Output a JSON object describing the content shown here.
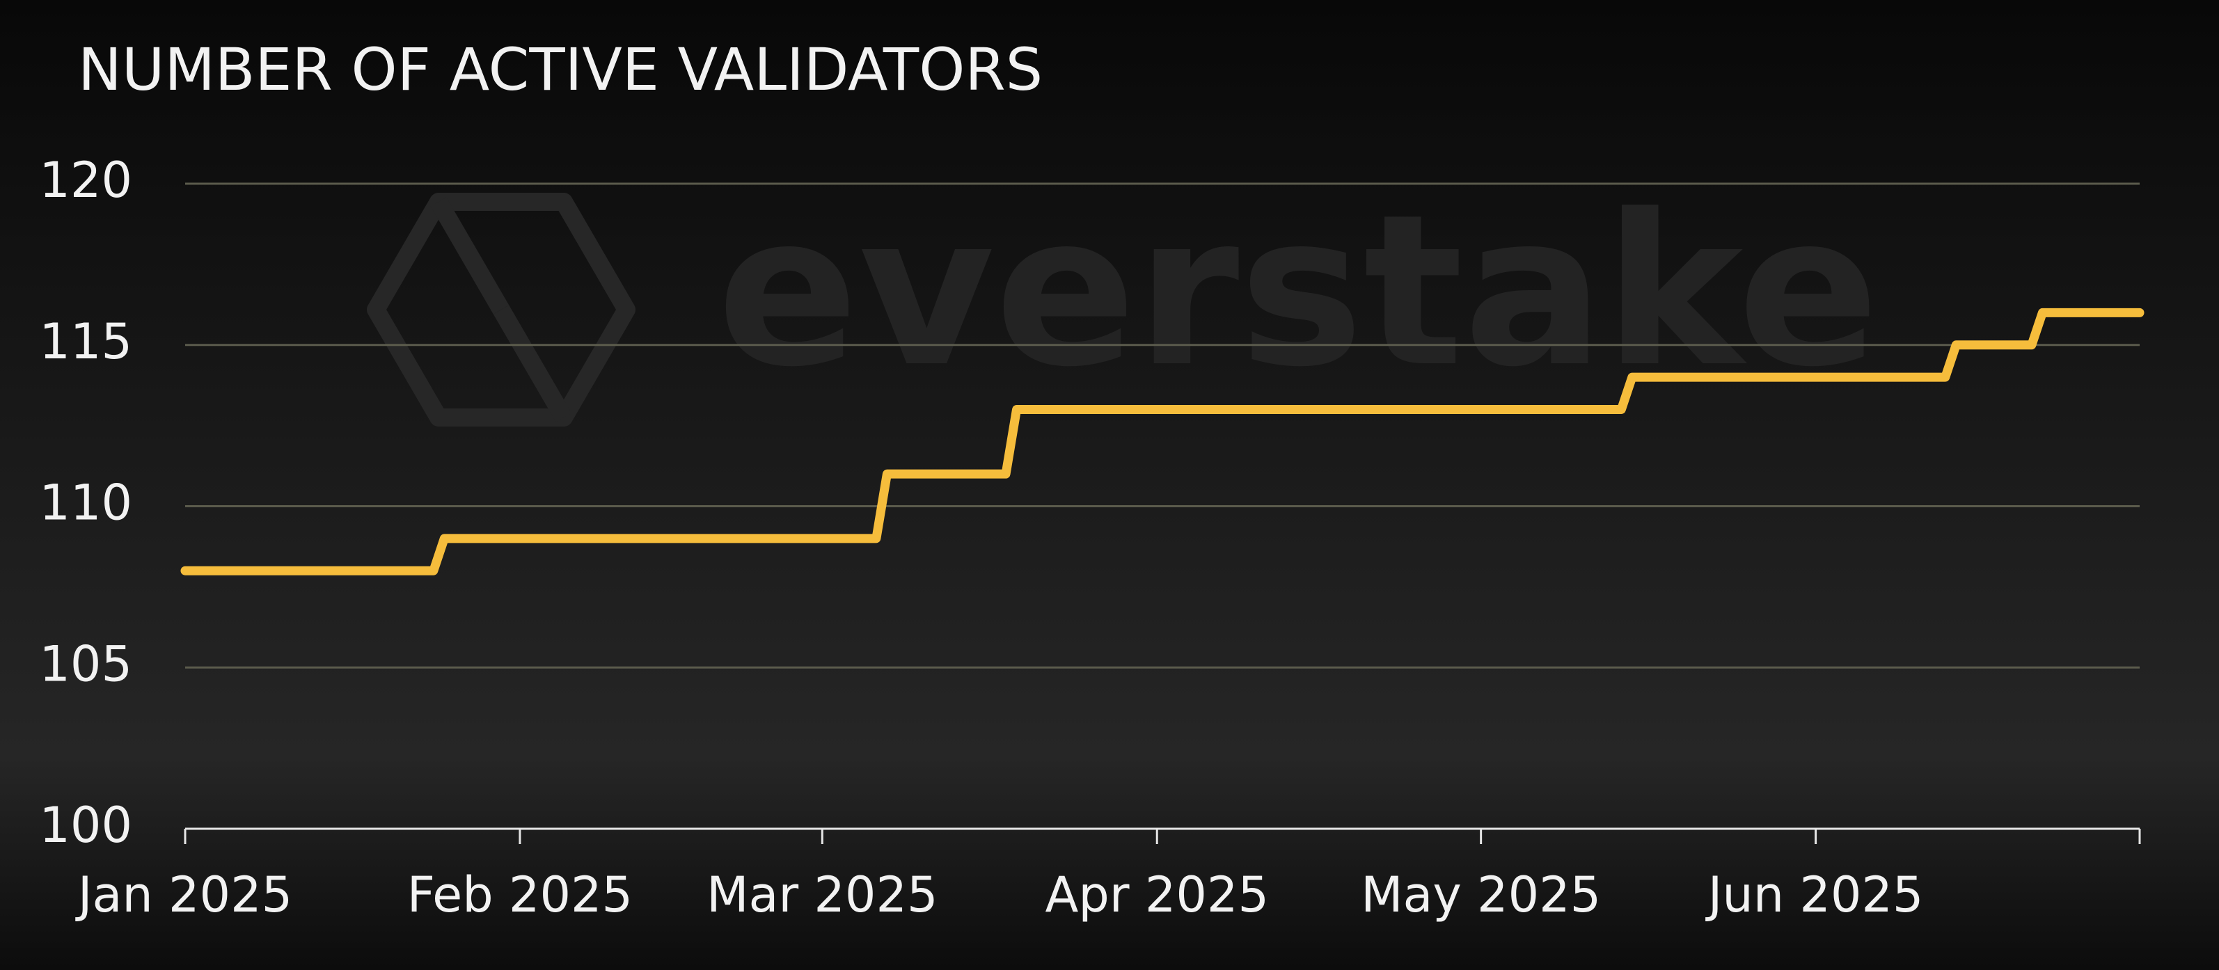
{
  "chart_data": {
    "type": "line",
    "title": "NUMBER OF ACTIVE VALIDATORS",
    "watermark": "everstake",
    "categories": [
      "Jan 2025",
      null,
      null,
      null,
      null,
      null,
      null,
      null,
      null,
      null,
      null,
      null,
      null,
      null,
      null,
      null,
      null,
      null,
      null,
      null,
      null,
      null,
      null,
      null,
      null,
      null,
      null,
      null,
      null,
      null,
      null,
      "Feb 2025",
      null,
      null,
      null,
      null,
      null,
      null,
      null,
      null,
      null,
      null,
      null,
      null,
      null,
      null,
      null,
      null,
      null,
      null,
      null,
      null,
      null,
      null,
      null,
      null,
      null,
      null,
      null,
      "Mar 2025",
      null,
      null,
      null,
      null,
      null,
      null,
      null,
      null,
      null,
      null,
      null,
      null,
      null,
      null,
      null,
      null,
      null,
      null,
      null,
      null,
      null,
      null,
      null,
      null,
      null,
      null,
      null,
      null,
      null,
      null,
      "Apr 2025",
      null,
      null,
      null,
      null,
      null,
      null,
      null,
      null,
      null,
      null,
      null,
      null,
      null,
      null,
      null,
      null,
      null,
      null,
      null,
      null,
      null,
      null,
      null,
      null,
      null,
      null,
      null,
      null,
      null,
      "May 2025",
      null,
      null,
      null,
      null,
      null,
      null,
      null,
      null,
      null,
      null,
      null,
      null,
      null,
      null,
      null,
      null,
      null,
      null,
      null,
      null,
      null,
      null,
      null,
      null,
      null,
      null,
      null,
      null,
      null,
      null,
      "Jun 2025",
      null,
      null,
      null,
      null,
      null,
      null,
      null,
      null,
      null,
      null,
      null,
      null,
      null,
      null,
      null,
      null,
      null,
      null,
      null,
      null,
      null,
      null,
      null,
      null,
      null,
      null,
      null,
      null,
      null,
      null
    ],
    "values": [
      108,
      108,
      108,
      108,
      108,
      108,
      108,
      108,
      108,
      108,
      108,
      108,
      108,
      108,
      108,
      108,
      108,
      108,
      108,
      108,
      108,
      108,
      108,
      108,
      109,
      109,
      109,
      109,
      109,
      109,
      109,
      109,
      109,
      109,
      109,
      109,
      109,
      109,
      109,
      109,
      109,
      109,
      109,
      109,
      109,
      109,
      109,
      109,
      109,
      109,
      109,
      109,
      109,
      109,
      109,
      109,
      109,
      109,
      109,
      109,
      109,
      109,
      109,
      109,
      109,
      111,
      111,
      111,
      111,
      111,
      111,
      111,
      111,
      111,
      111,
      111,
      111,
      113,
      113,
      113,
      113,
      113,
      113,
      113,
      113,
      113,
      113,
      113,
      113,
      113,
      113,
      113,
      113,
      113,
      113,
      113,
      113,
      113,
      113,
      113,
      113,
      113,
      113,
      113,
      113,
      113,
      113,
      113,
      113,
      113,
      113,
      113,
      113,
      113,
      113,
      113,
      113,
      113,
      113,
      113,
      113,
      113,
      113,
      113,
      113,
      113,
      113,
      113,
      113,
      113,
      113,
      113,
      113,
      113,
      114,
      114,
      114,
      114,
      114,
      114,
      114,
      114,
      114,
      114,
      114,
      114,
      114,
      114,
      114,
      114,
      114,
      114,
      114,
      114,
      114,
      114,
      114,
      114,
      114,
      114,
      114,
      114,
      114,
      114,
      115,
      115,
      115,
      115,
      115,
      115,
      115,
      115,
      116,
      116,
      116,
      116,
      116,
      116,
      116,
      116,
      116,
      116
    ],
    "color": "#f6bd3c",
    "ylim": [
      100,
      120
    ],
    "yticks": [
      100,
      105,
      110,
      115,
      120
    ],
    "grid": true
  }
}
